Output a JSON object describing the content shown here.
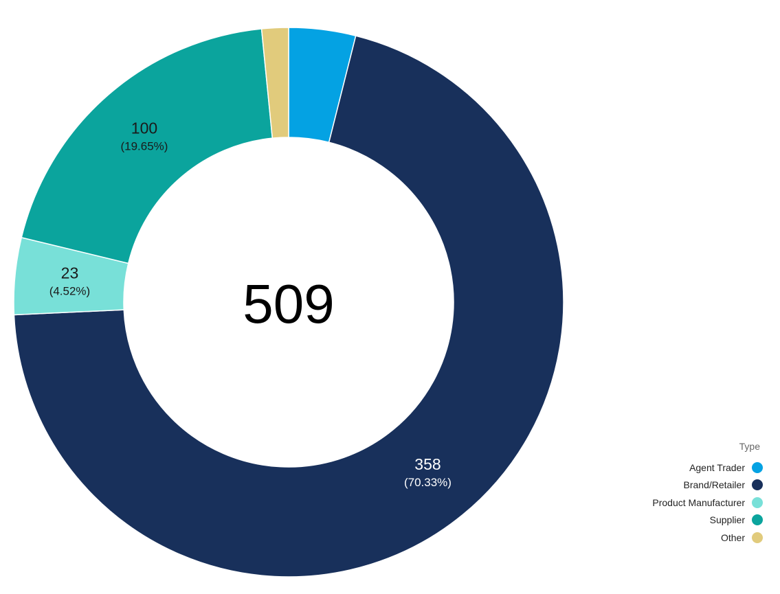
{
  "chart_data": {
    "type": "pie",
    "subtype": "donut",
    "center_total": "509",
    "legend_title": "Type",
    "legend_placement": "bottom-right",
    "categories": [
      "Agent Trader",
      "Brand/Retailer",
      "Product Manufacturer",
      "Supplier",
      "Other"
    ],
    "values": [
      20,
      358,
      23,
      100,
      8
    ],
    "percent_labels": [
      "",
      "(70.33%)",
      "(4.52%)",
      "(19.65%)",
      ""
    ],
    "value_labels": [
      "",
      "358",
      "23",
      "100",
      ""
    ],
    "colors": [
      "#04a2e3",
      "#18305b",
      "#78e0d8",
      "#0ba49d",
      "#e1cb7c"
    ],
    "label_colors": [
      "#ffffff",
      "#ffffff",
      "#1a1a1a",
      "#1a1a1a",
      "#1a1a1a"
    ]
  }
}
